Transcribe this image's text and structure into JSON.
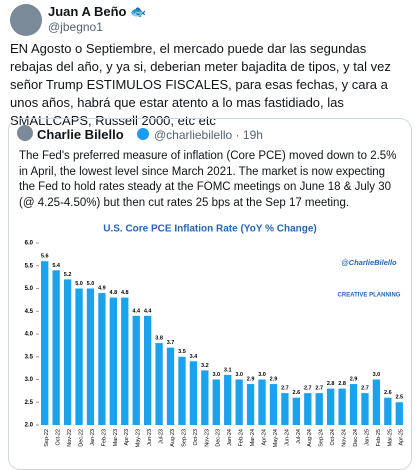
{
  "tweet": {
    "name": "Juan A Beño 🐟",
    "handle": "@jbegno1",
    "text": "EN Agosto o Septiembre, el mercado puede dar las segundas rebajas del año, y ya si, deberian meter bajadita de tipos, y tal vez señor Trump ESTIMULOS FISCALES,  para esas fechas, y cara a unos años, habrá que estar atento a lo mas fastidiado, las SMALLCAPS,  Russell 2000, etc etc"
  },
  "quote": {
    "name": "Charlie Bilello",
    "handle": "@charliebilello",
    "time": "19h",
    "text": "The Fed's preferred measure of inflation (Core PCE) moved down to 2.5% in April, the lowest level since March 2021. The market is now expecting the Fed to hold rates steady at the FOMC meetings on June 18 & July 30 (@ 4.25-4.50%) but then cut rates 25 bps at the Sep 17 meeting."
  },
  "chart_data": {
    "type": "bar",
    "title": "U.S. Core PCE Inflation Rate (YoY % Change)",
    "watermark": "@CharlieBilello",
    "brand": "CREATIVE PLANNING",
    "categories": [
      "Sep-22",
      "Oct-22",
      "Nov-22",
      "Dec-22",
      "Jan-23",
      "Feb-23",
      "Mar-23",
      "Apr-23",
      "May-23",
      "Jun-23",
      "Jul-23",
      "Aug-23",
      "Sep-23",
      "Oct-23",
      "Nov-23",
      "Dec-23",
      "Jan-24",
      "Feb-24",
      "Mar-24",
      "Apr-24",
      "May-24",
      "Jun-24",
      "Jul-24",
      "Aug-24",
      "Sep-24",
      "Oct-24",
      "Nov-24",
      "Dec-24",
      "Jan-25",
      "Feb-25",
      "Mar-25",
      "Apr-25"
    ],
    "values": [
      5.6,
      5.4,
      5.2,
      5.0,
      5.0,
      4.9,
      4.8,
      4.8,
      4.4,
      4.4,
      3.8,
      3.7,
      3.5,
      3.4,
      3.2,
      3.0,
      3.1,
      3.0,
      2.9,
      3.0,
      2.9,
      2.7,
      2.6,
      2.7,
      2.7,
      2.8,
      2.8,
      2.9,
      2.7,
      3.0,
      2.6,
      2.5
    ],
    "value_labels": [
      "5.6",
      "5.4",
      "5.2",
      "5.0",
      "5.0",
      "4.9",
      "4.8",
      "4.8",
      "4.4",
      "4.4",
      "3.8",
      "3.7",
      "3.5",
      "3.4",
      "3.2",
      "3.0",
      "3.1",
      "3.0",
      "2.9",
      "3.0",
      "2.9",
      "2.7",
      "2.6",
      "2.7",
      "2.7",
      "2.8",
      "2.8",
      "2.9",
      "2.7",
      "3.0",
      "2.6",
      "2.5"
    ],
    "color": "#1aa3ec",
    "ylim": [
      2,
      6
    ],
    "yticks": [
      {
        "value": 2,
        "label": "2.0"
      },
      2.5,
      {
        "value": 3,
        "label": "3.0"
      },
      3.5,
      {
        "value": 4,
        "label": "4.0"
      },
      4.5,
      {
        "value": 5,
        "label": "5.0"
      },
      5.5,
      {
        "value": 6,
        "label": "6.0"
      }
    ],
    "grid": false
  }
}
